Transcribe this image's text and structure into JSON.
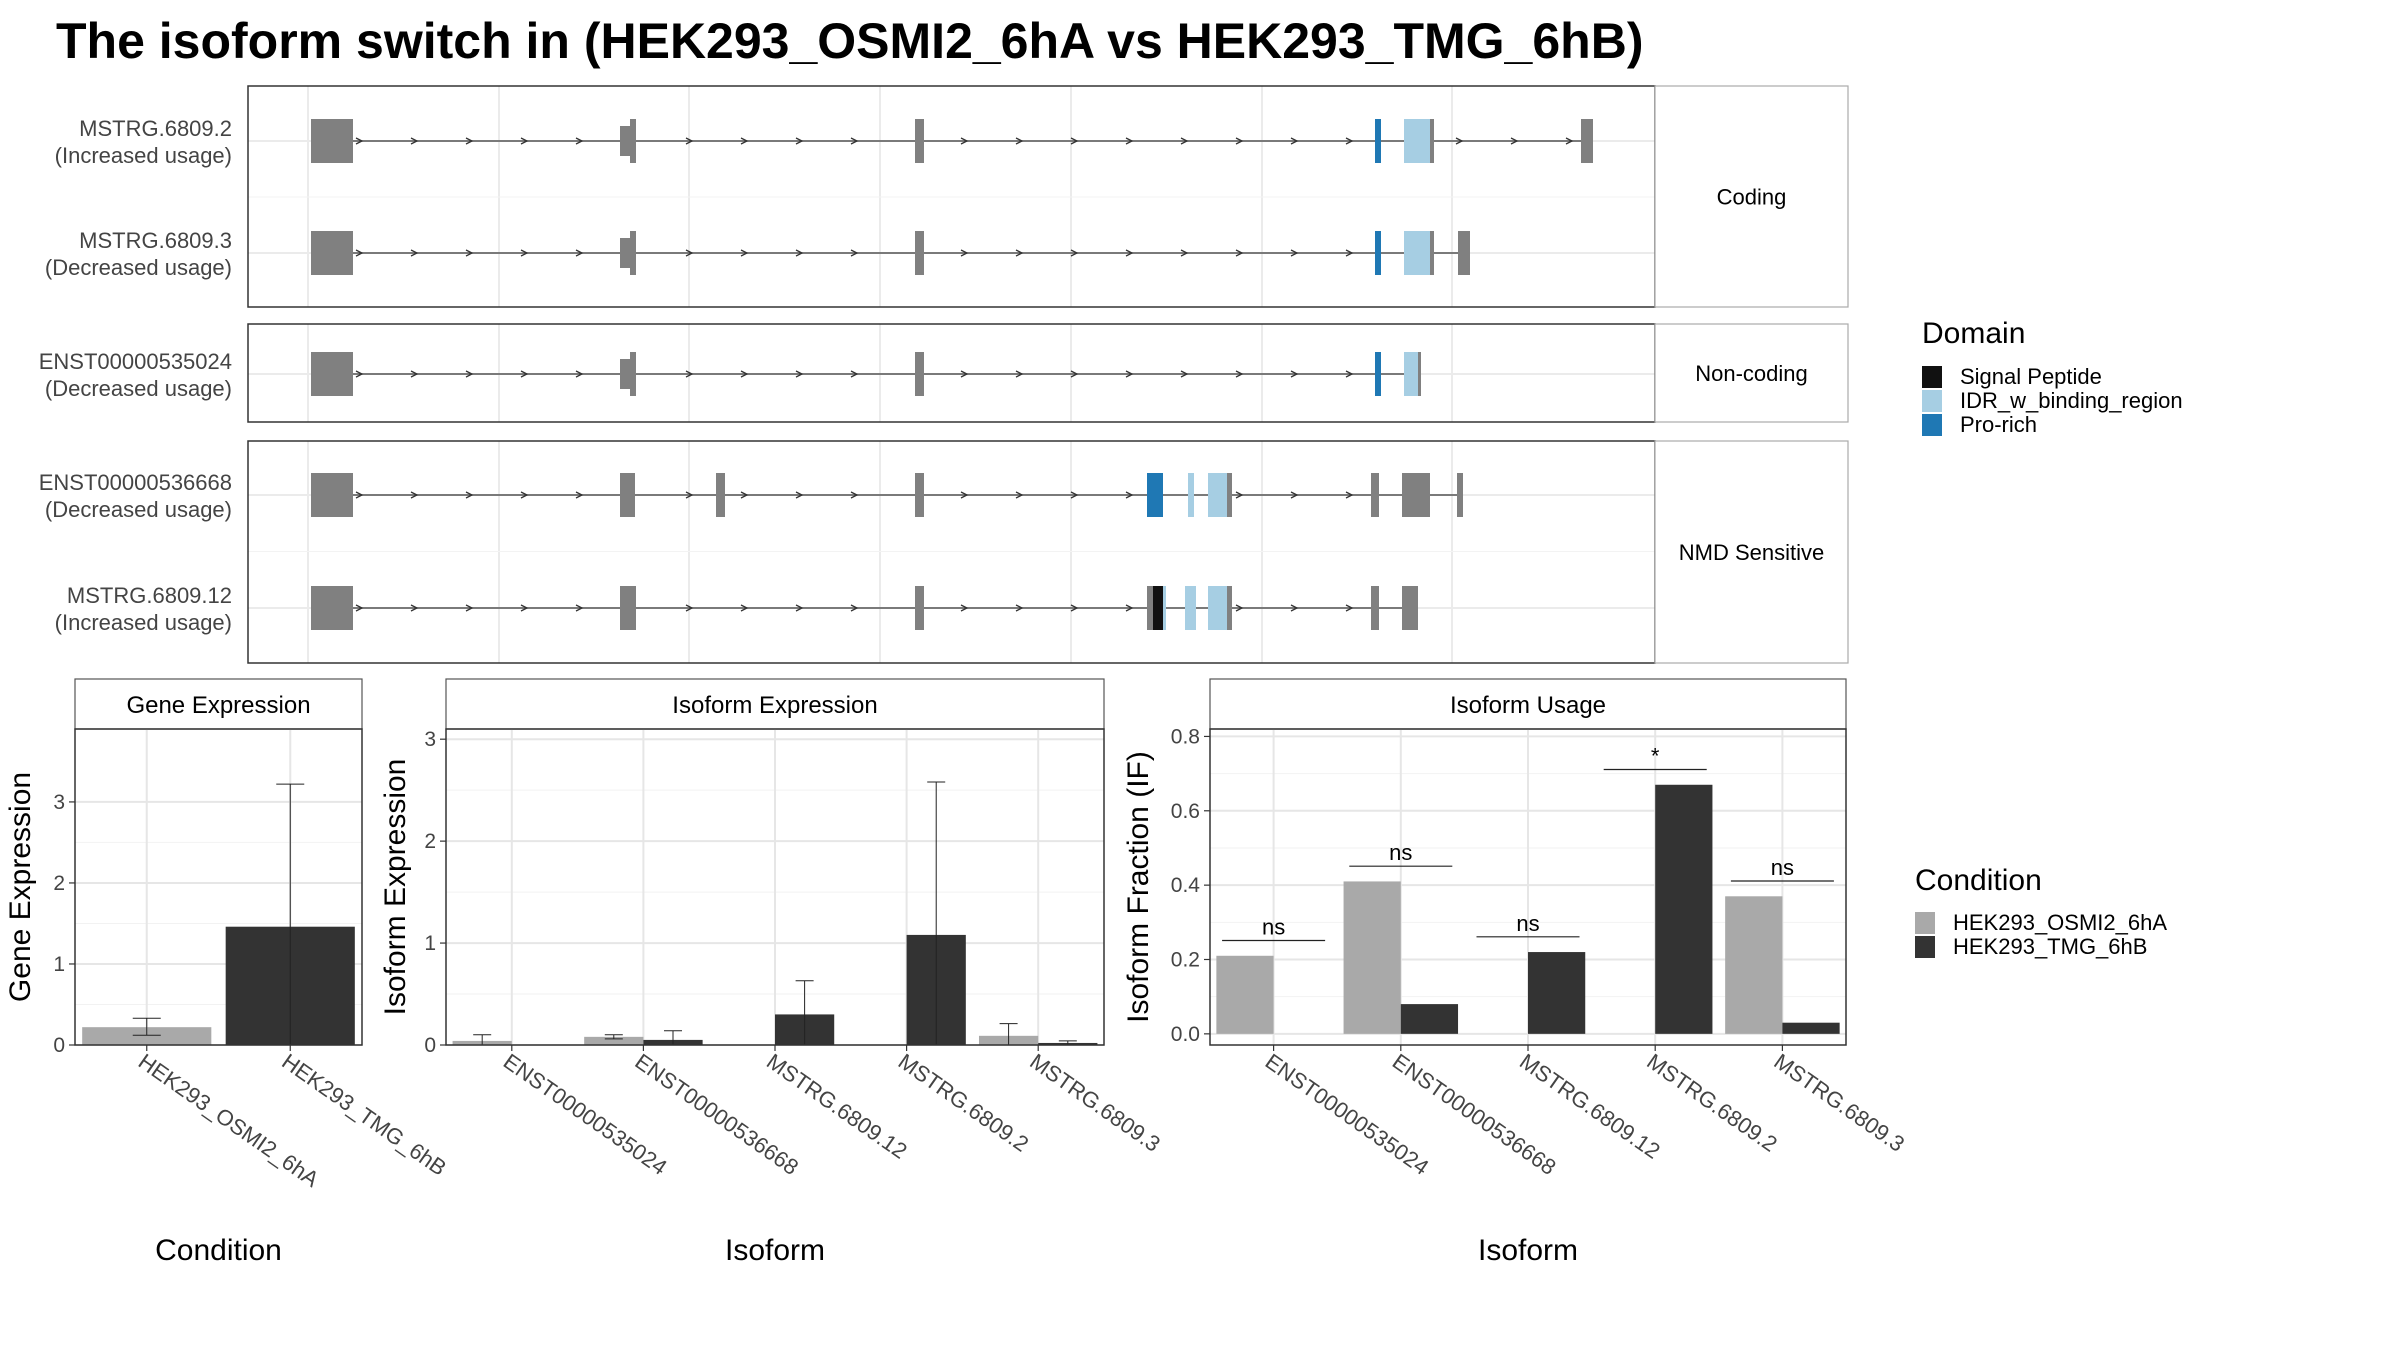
{
  "title": "The isoform switch in  (HEK293_OSMI2_6hA vs HEK293_TMG_6hB)",
  "colors": {
    "cond_a": "#a9a9a9",
    "cond_b": "#333333",
    "exon": "#808080",
    "signal_peptide": "#111111",
    "idr": "#a6cee3",
    "pro_rich": "#1f78b4"
  },
  "structure": {
    "panels": [
      {
        "strip": "Coding",
        "tracks": [
          {
            "name": "MSTRG.6809.2",
            "usage": "(Increased usage)"
          },
          {
            "name": "MSTRG.6809.3",
            "usage": "(Decreased usage)"
          }
        ]
      },
      {
        "strip": "Non-coding",
        "tracks": [
          {
            "name": "ENST00000535024",
            "usage": "(Decreased usage)"
          }
        ]
      },
      {
        "strip": "NMD Sensitive",
        "tracks": [
          {
            "name": "ENST00000536668",
            "usage": "(Decreased usage)"
          },
          {
            "name": "MSTRG.6809.12",
            "usage": "(Increased usage)"
          }
        ]
      }
    ]
  },
  "legend_domain": {
    "title": "Domain",
    "items": [
      {
        "label": "Signal Peptide",
        "color": "#111111"
      },
      {
        "label": "IDR_w_binding_region",
        "color": "#a6cee3"
      },
      {
        "label": "Pro-rich",
        "color": "#1f78b4"
      }
    ]
  },
  "legend_condition": {
    "title": "Condition",
    "items": [
      {
        "label": "HEK293_OSMI2_6hA",
        "color": "#a9a9a9"
      },
      {
        "label": "HEK293_TMG_6hB",
        "color": "#333333"
      }
    ]
  },
  "chart_data": [
    {
      "type": "bar",
      "title": "Gene Expression",
      "xlabel": "Condition",
      "ylabel": "Gene Expression",
      "ylim": [
        0,
        3.9
      ],
      "yticks": [
        0,
        1,
        2,
        3
      ],
      "categories": [
        "HEK293_OSMI2_6hA",
        "HEK293_TMG_6hB"
      ],
      "values": [
        0.22,
        1.46
      ],
      "errors": [
        [
          0.12,
          0.33
        ],
        [
          0.0,
          3.22
        ]
      ]
    },
    {
      "type": "bar",
      "title": "Isoform Expression",
      "xlabel": "Isoform",
      "ylabel": "Isoform Expression",
      "ylim": [
        0,
        3.1
      ],
      "yticks": [
        0,
        1,
        2,
        3
      ],
      "categories": [
        "ENST00000535024",
        "ENST00000536668",
        "MSTRG.6809.12",
        "MSTRG.6809.2",
        "MSTRG.6809.3"
      ],
      "series": [
        {
          "name": "HEK293_OSMI2_6hA",
          "values": [
            0.04,
            0.08,
            0.0,
            0.0,
            0.09
          ],
          "errors": [
            [
              0.0,
              0.1
            ],
            [
              0.06,
              0.1
            ],
            [
              0.0,
              0.0
            ],
            [
              0.0,
              0.0
            ],
            [
              0.0,
              0.21
            ]
          ]
        },
        {
          "name": "HEK293_TMG_6hB",
          "values": [
            0.0,
            0.05,
            0.3,
            1.08,
            0.02
          ],
          "errors": [
            [
              0.0,
              0.0
            ],
            [
              0.0,
              0.14
            ],
            [
              0.0,
              0.63
            ],
            [
              0.0,
              2.58
            ],
            [
              0.0,
              0.04
            ]
          ]
        }
      ]
    },
    {
      "type": "bar",
      "title": "Isoform Usage",
      "xlabel": "Isoform",
      "ylabel": "Isoform Fraction (IF)",
      "ylim": [
        -0.03,
        0.82
      ],
      "yticks": [
        0.0,
        0.2,
        0.4,
        0.6,
        0.8
      ],
      "categories": [
        "ENST00000535024",
        "ENST00000536668",
        "MSTRG.6809.12",
        "MSTRG.6809.2",
        "MSTRG.6809.3"
      ],
      "series": [
        {
          "name": "HEK293_OSMI2_6hA",
          "values": [
            0.21,
            0.41,
            0.0,
            0.0,
            0.37
          ]
        },
        {
          "name": "HEK293_TMG_6hB",
          "values": [
            0.0,
            0.08,
            0.22,
            0.67,
            0.03
          ]
        }
      ],
      "significance": [
        "ns",
        "ns",
        "ns",
        "*",
        "ns"
      ]
    }
  ]
}
